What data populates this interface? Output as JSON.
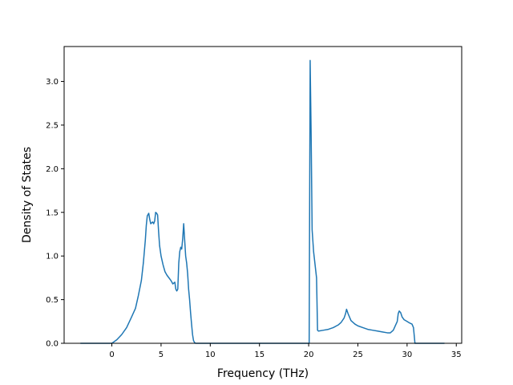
{
  "chart_data": {
    "type": "line",
    "title": "",
    "xlabel": "Frequency (THz)",
    "ylabel": "Density of States",
    "xlim": [
      -4.85,
      35.55
    ],
    "ylim": [
      0.0,
      3.4
    ],
    "xticks": [
      0,
      5,
      10,
      15,
      20,
      25,
      30,
      35
    ],
    "yticks": [
      0.0,
      0.5,
      1.0,
      1.5,
      2.0,
      2.5,
      3.0
    ],
    "xtick_labels": [
      "0",
      "5",
      "10",
      "15",
      "20",
      "25",
      "30",
      "35"
    ],
    "ytick_labels": [
      "0.0",
      "0.5",
      "1.0",
      "1.5",
      "2.0",
      "2.5",
      "3.0"
    ],
    "grid": false,
    "legend": false,
    "line_color": "#1f77b4",
    "series": [
      {
        "x": [
          -3.2,
          0.0,
          0.5,
          1.0,
          1.5,
          2.0,
          2.4,
          2.7,
          3.0,
          3.2,
          3.4,
          3.5,
          3.6,
          3.75,
          3.85,
          3.95,
          4.05,
          4.15,
          4.25,
          4.35,
          4.45,
          4.55,
          4.65,
          4.75,
          4.85,
          5.0,
          5.2,
          5.4,
          5.6,
          5.8,
          6.0,
          6.2,
          6.4,
          6.5,
          6.6,
          6.7,
          6.8,
          6.9,
          7.0,
          7.1,
          7.2,
          7.3,
          7.4,
          7.5,
          7.6,
          7.7,
          7.8,
          7.9,
          8.0,
          8.1,
          8.2,
          8.3,
          8.4,
          8.5,
          8.6,
          8.7,
          20.0,
          20.05,
          20.15,
          20.25,
          20.35,
          20.5,
          20.6,
          20.7,
          20.8,
          20.9,
          21.0,
          21.5,
          22.0,
          22.5,
          23.0,
          23.3,
          23.6,
          23.75,
          23.85,
          24.0,
          24.3,
          24.7,
          25.0,
          25.5,
          26.0,
          26.5,
          27.0,
          27.5,
          28.0,
          28.3,
          28.6,
          28.8,
          29.0,
          29.1,
          29.2,
          29.35,
          29.5,
          29.7,
          30.0,
          30.3,
          30.5,
          30.65,
          30.8,
          33.8
        ],
        "y": [
          0.0,
          0.0,
          0.04,
          0.1,
          0.18,
          0.3,
          0.4,
          0.55,
          0.72,
          0.92,
          1.18,
          1.35,
          1.46,
          1.49,
          1.42,
          1.37,
          1.38,
          1.39,
          1.37,
          1.4,
          1.5,
          1.49,
          1.47,
          1.28,
          1.12,
          1.0,
          0.9,
          0.82,
          0.78,
          0.75,
          0.72,
          0.68,
          0.7,
          0.62,
          0.6,
          0.62,
          0.92,
          1.05,
          1.1,
          1.08,
          1.2,
          1.37,
          1.18,
          1.0,
          0.92,
          0.8,
          0.62,
          0.5,
          0.35,
          0.22,
          0.1,
          0.03,
          0.01,
          0.0,
          0.0,
          0.0,
          0.0,
          0.0,
          3.24,
          2.4,
          1.3,
          1.05,
          0.95,
          0.85,
          0.75,
          0.15,
          0.14,
          0.15,
          0.16,
          0.18,
          0.21,
          0.24,
          0.29,
          0.34,
          0.39,
          0.34,
          0.26,
          0.22,
          0.2,
          0.18,
          0.16,
          0.15,
          0.14,
          0.13,
          0.12,
          0.12,
          0.15,
          0.2,
          0.25,
          0.34,
          0.37,
          0.35,
          0.3,
          0.27,
          0.25,
          0.23,
          0.22,
          0.18,
          0.0,
          0.0
        ]
      }
    ]
  }
}
